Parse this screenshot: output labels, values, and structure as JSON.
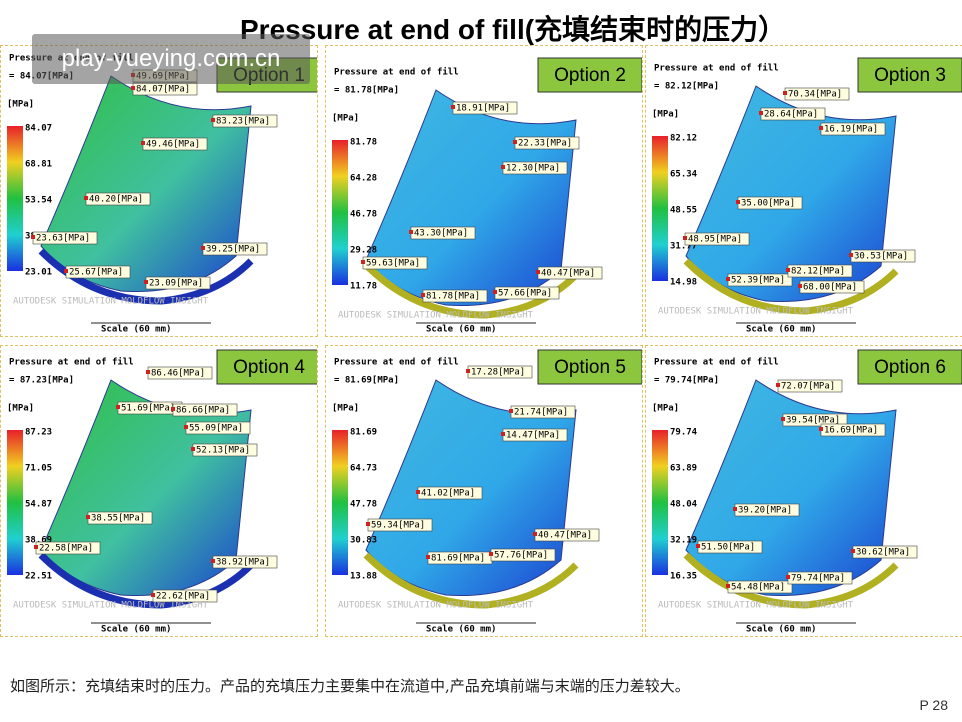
{
  "header": {
    "title": "Pressure at end of fill(充填结束时的压力）"
  },
  "watermark": "play-yueying.com.cn",
  "panels": [
    {
      "option": "Option 1",
      "heading": "Pressure at end of fill",
      "max": "= 84.07[MPa]",
      "unit": "[MPa]",
      "legend": [
        "84.07",
        "68.81",
        "53.54",
        "38.27",
        "23.01"
      ],
      "callouts": [
        "49.69[MPa]",
        "84.07[MPa]",
        "83.23[MPa]",
        "49.46[MPa]",
        "40.20[MPa]",
        "23.63[MPa]",
        "39.25[MPa]",
        "25.67[MPa]",
        "23.09[MPa]"
      ],
      "brand": "AUTODESK SIMULATION MOLDFLOW INSIGHT",
      "scale": "Scale (60 mm)"
    },
    {
      "option": "Option 2",
      "heading": "Pressure at end of fill",
      "max": "= 81.78[MPa]",
      "unit": "[MPa]",
      "legend": [
        "81.78",
        "64.28",
        "46.78",
        "29.28",
        "11.78"
      ],
      "callouts": [
        "18.91[MPa]",
        "22.33[MPa]",
        "12.30[MPa]",
        "43.30[MPa]",
        "59.63[MPa]",
        "40.47[MPa]",
        "81.78[MPa]",
        "57.66[MPa]"
      ],
      "brand": "AUTODESK SIMULATION MOLDFLOW INSIGHT",
      "scale": "Scale (60 mm)"
    },
    {
      "option": "Option 3",
      "heading": "Pressure at end of fill",
      "max": "= 82.12[MPa]",
      "unit": "[MPa]",
      "legend": [
        "82.12",
        "65.34",
        "48.55",
        "31.77",
        "14.98"
      ],
      "callouts": [
        "70.34[MPa]",
        "28.64[MPa]",
        "16.19[MPa]",
        "35.00[MPa]",
        "48.95[MPa]",
        "30.53[MPa]",
        "52.39[MPa]",
        "82.12[MPa]",
        "68.00[MPa]"
      ],
      "brand": "AUTODESK SIMULATION MOLDFLOW INSIGHT",
      "scale": "Scale (60 mm)"
    },
    {
      "option": "Option 4",
      "heading": "Pressure at end of fill",
      "max": "= 87.23[MPa]",
      "unit": "[MPa]",
      "legend": [
        "87.23",
        "71.05",
        "54.87",
        "38.69",
        "22.51"
      ],
      "callouts": [
        "86.46[MPa]",
        "51.69[MPa]",
        "86.66[MPa]",
        "55.09[MPa]",
        "52.13[MPa]",
        "38.55[MPa]",
        "22.58[MPa]",
        "38.92[MPa]",
        "22.62[MPa]"
      ],
      "brand": "AUTODESK SIMULATION MOLDFLOW INSIGHT",
      "scale": "Scale (60 mm)"
    },
    {
      "option": "Option 5",
      "heading": "Pressure at end of fill",
      "max": "= 81.69[MPa]",
      "unit": "[MPa]",
      "legend": [
        "81.69",
        "64.73",
        "47.78",
        "30.83",
        "13.88"
      ],
      "callouts": [
        "17.28[MPa]",
        "21.74[MPa]",
        "14.47[MPa]",
        "41.02[MPa]",
        "59.34[MPa]",
        "40.47[MPa]",
        "81.69[MPa]",
        "57.76[MPa]"
      ],
      "brand": "AUTODESK SIMULATION MOLDFLOW INSIGHT",
      "scale": "Scale (60 mm)"
    },
    {
      "option": "Option 6",
      "heading": "Pressure at end of fill",
      "max": "= 79.74[MPa]",
      "unit": "[MPa]",
      "legend": [
        "79.74",
        "63.89",
        "48.04",
        "32.19",
        "16.35"
      ],
      "callouts": [
        "72.07[MPa]",
        "39.54[MPa]",
        "16.69[MPa]",
        "39.20[MPa]",
        "51.50[MPa]",
        "30.62[MPa]",
        "54.48[MPa]",
        "79.74[MPa]"
      ],
      "brand": "AUTODESK SIMULATION MOLDFLOW INSIGHT",
      "scale": "Scale (60 mm)"
    }
  ],
  "footer": {
    "note": "如图所示：充填结束时的压力。产品的充填压力主要集中在流道中,产品充填前端与末端的压力差较大。",
    "page": "P 28"
  }
}
